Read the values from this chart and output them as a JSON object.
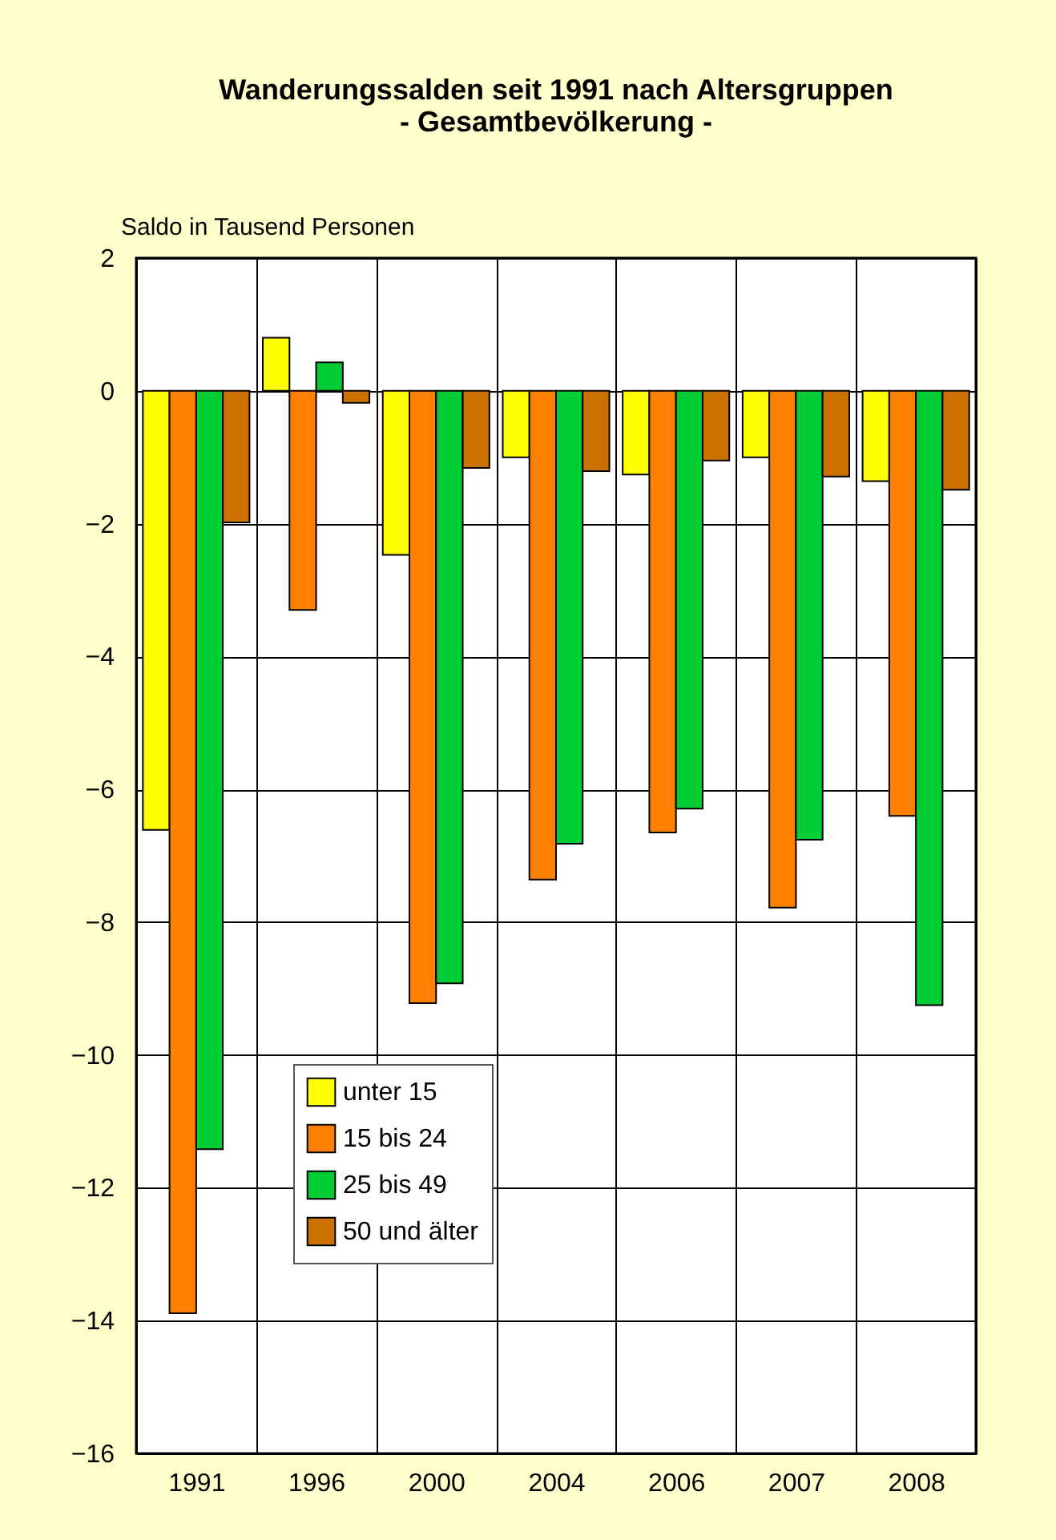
{
  "chart_data": {
    "type": "bar",
    "title": [
      "Wanderungssalden seit 1991 nach Altersgruppen",
      "- Gesamtbevölkerung -"
    ],
    "ylabel": "Saldo in Tausend Personen",
    "categories": [
      "1991",
      "1996",
      "2000",
      "2004",
      "2006",
      "2007",
      "2008"
    ],
    "series": [
      {
        "name": "unter 15",
        "color": "#ffff00",
        "values": [
          -6.61,
          0.8,
          -2.47,
          -1.0,
          -1.26,
          -1.0,
          -1.36
        ]
      },
      {
        "name": "15 bis 24",
        "color": "#ff8000",
        "values": [
          -13.89,
          -3.3,
          -9.22,
          -7.36,
          -6.65,
          -7.78,
          -6.4
        ]
      },
      {
        "name": "25 bis 49",
        "color": "#00cc33",
        "values": [
          -11.42,
          0.43,
          -8.92,
          -6.82,
          -6.29,
          -6.76,
          -9.25
        ]
      },
      {
        "name": "50 und älter",
        "color": "#cc7000",
        "values": [
          -1.98,
          -0.18,
          -1.16,
          -1.21,
          -1.05,
          -1.29,
          -1.49
        ]
      }
    ],
    "ylim": [
      -16,
      2
    ],
    "yticks": [
      -16,
      -14,
      -12,
      -10,
      -8,
      -6,
      -4,
      -2,
      0,
      2
    ],
    "grid": true,
    "legend": "bottom left"
  }
}
